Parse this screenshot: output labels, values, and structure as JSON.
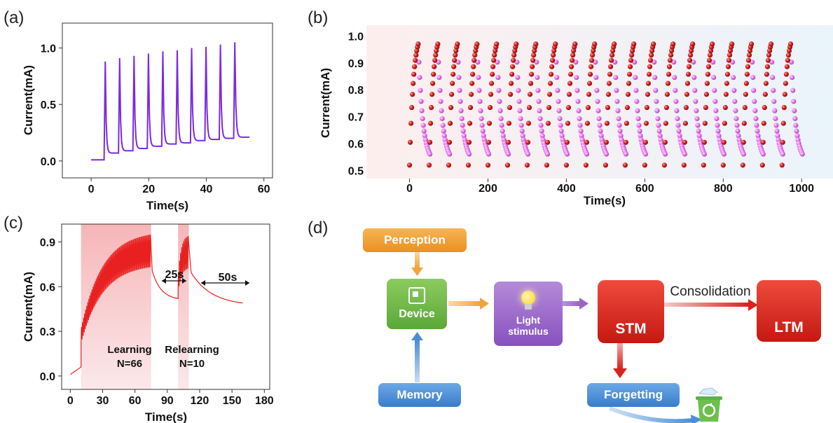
{
  "panels": {
    "a": "(a)",
    "b": "(b)",
    "c": "(c)",
    "d": "(d)"
  },
  "chart_data": [
    {
      "type": "line",
      "panel": "a",
      "xlabel": "Time(s)",
      "ylabel": "Current(mA)",
      "xlim": [
        -10,
        63
      ],
      "ylim": [
        -0.15,
        1.22
      ],
      "xticks": [
        "0",
        "20",
        "40",
        "60"
      ],
      "yticks": [
        "0.0",
        "0.5",
        "1.0"
      ],
      "color": "#7a2be0",
      "baseline": 0.01,
      "pulse_starts": [
        4.5,
        9.5,
        14.5,
        19.5,
        24.5,
        29.5,
        34.5,
        39.5,
        44.5,
        49.5
      ],
      "peaks": [
        0.88,
        0.91,
        0.93,
        0.95,
        0.97,
        0.98,
        1.0,
        1.01,
        1.03,
        1.05
      ],
      "troughs": [
        0.07,
        0.09,
        0.11,
        0.13,
        0.15,
        0.16,
        0.18,
        0.19,
        0.2,
        0.21
      ],
      "end": {
        "x": 55,
        "y": 0.21
      }
    },
    {
      "type": "scatter",
      "panel": "b",
      "xlabel": "Time(s)",
      "ylabel": "Current(mA)",
      "xlim": [
        -110,
        1080
      ],
      "ylim": [
        0.47,
        1.04
      ],
      "xticks": [
        "0",
        "200",
        "400",
        "600",
        "800",
        "1000"
      ],
      "yticks": [
        "0.5",
        "0.6",
        "0.7",
        "0.8",
        "0.9",
        "1.0"
      ],
      "series": [
        {
          "color": "#e02828",
          "cycle_starts": [
            0,
            50,
            100,
            150,
            200,
            250,
            300,
            350,
            400,
            450,
            500,
            550,
            600,
            650,
            700,
            750,
            800,
            850,
            900,
            950
          ],
          "y_range": [
            0.52,
            0.97
          ],
          "rise_duration": 22
        },
        {
          "color": "#ee7ef2",
          "cycle_starts": [
            22,
            72,
            122,
            172,
            222,
            272,
            322,
            372,
            422,
            472,
            522,
            572,
            622,
            672,
            722,
            772,
            822,
            872,
            922,
            972
          ],
          "y_range": [
            0.97,
            0.53
          ],
          "decay_duration": 30
        }
      ]
    },
    {
      "type": "line",
      "panel": "c",
      "xlabel": "Time(s)",
      "ylabel": "Current(mA)",
      "xlim": [
        -8,
        185
      ],
      "ylim": [
        -0.09,
        1.02
      ],
      "xticks": [
        "0",
        "30",
        "60",
        "90",
        "120",
        "150",
        "180"
      ],
      "yticks": [
        "0.0",
        "0.3",
        "0.6",
        "0.9"
      ],
      "color": "#e82020",
      "learning": {
        "start": 10,
        "end": 75,
        "pulses": 66,
        "low_start": 0.22,
        "high_start": 0.33,
        "low_end": 0.73,
        "high_end": 0.95
      },
      "relearning": {
        "start": 100,
        "end": 110,
        "pulses": 10,
        "low_start": 0.55,
        "high_start": 0.7,
        "low_end": 0.72,
        "high_end": 0.94
      },
      "decay": [
        {
          "x": 75,
          "y": 0.73
        },
        {
          "x": 100,
          "y": 0.52
        },
        {
          "x": 110,
          "y": 0.72
        },
        {
          "x": 160,
          "y": 0.49
        }
      ],
      "shaded_ranges": [
        [
          10,
          75
        ],
        [
          100,
          110
        ]
      ],
      "annotations": {
        "gap1": "25s",
        "gap2": "50s",
        "learning": "Learning",
        "learning_n": "N=66",
        "relearning": "Relearning",
        "relearning_n": "N=10"
      }
    }
  ],
  "diagram": {
    "perception": "Perception",
    "device": "Device",
    "light": "Light stimulus",
    "stm": "STM",
    "ltm": "LTM",
    "consolidation": "Consolidation",
    "memory": "Memory",
    "forgetting": "Forgetting",
    "colors": {
      "orange": "#f0a13a",
      "green": "#6cba45",
      "purple": "#9a66c8",
      "red": "#d9231d",
      "blue": "#4a8fd6"
    }
  }
}
